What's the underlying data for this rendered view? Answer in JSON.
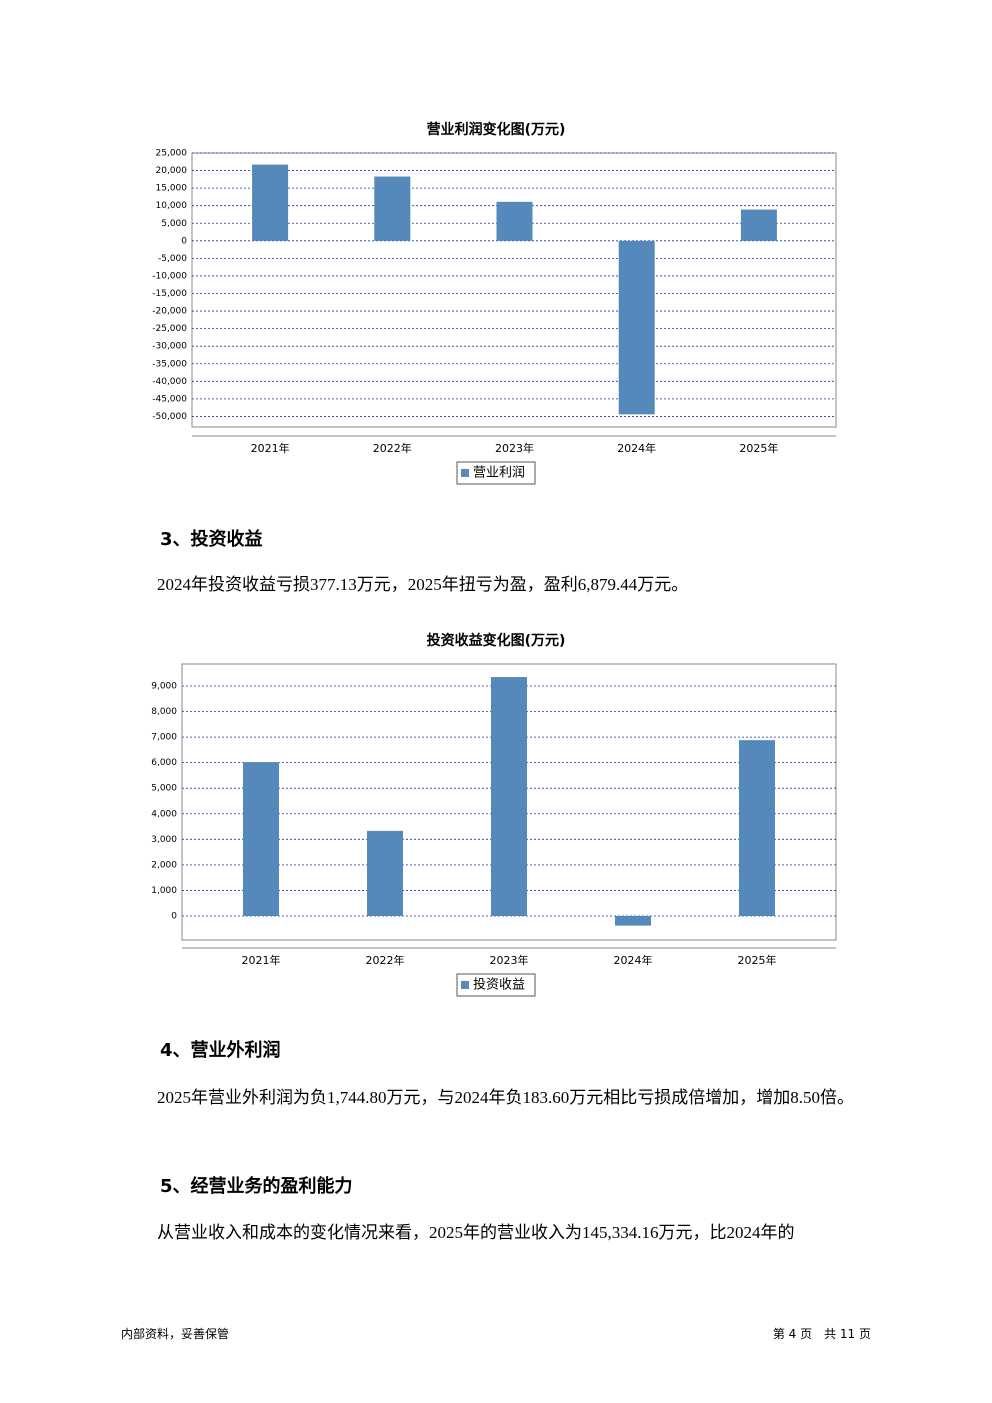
{
  "chart_data": [
    {
      "type": "bar",
      "title": "营业利润变化图(万元)",
      "categories": [
        "2021年",
        "2022年",
        "2023年",
        "2024年",
        "2025年"
      ],
      "series": [
        {
          "name": "营业利润",
          "color": "#5588bb",
          "values": [
            21700,
            18300,
            11100,
            -49400,
            8900
          ]
        }
      ],
      "ylim": [
        -53000,
        25000
      ],
      "yticks": [
        {
          "value": 25000,
          "label": "25,000"
        },
        {
          "value": 20000,
          "label": "20,000"
        },
        {
          "value": 15000,
          "label": "15,000"
        },
        {
          "value": 10000,
          "label": "10,000"
        },
        {
          "value": 5000,
          "label": "5,000"
        },
        0,
        {
          "value": -5000,
          "label": "-5,000"
        },
        {
          "value": -10000,
          "label": "-10,000"
        },
        {
          "value": -15000,
          "label": "-15,000"
        },
        {
          "value": -20000,
          "label": "-20,000"
        },
        {
          "value": -25000,
          "label": "-25,000"
        },
        {
          "value": -30000,
          "label": "-30,000"
        },
        {
          "value": -35000,
          "label": "-35,000"
        },
        {
          "value": -40000,
          "label": "-40,000"
        },
        {
          "value": -45000,
          "label": "-45,000"
        },
        {
          "value": -50000,
          "label": "-50,000"
        }
      ],
      "grid": true
    },
    {
      "type": "bar",
      "title": "投资收益变化图(万元)",
      "categories": [
        "2021年",
        "2022年",
        "2023年",
        "2024年",
        "2025年"
      ],
      "series": [
        {
          "name": "投资收益",
          "color": "#5588bb",
          "values": [
            6020,
            3330,
            9350,
            -377.13,
            6879.44
          ]
        }
      ],
      "ylim": [
        -940,
        9860
      ],
      "yticks": [
        {
          "value": 9000,
          "label": "9,000"
        },
        {
          "value": 8000,
          "label": "8,000"
        },
        {
          "value": 7000,
          "label": "7,000"
        },
        {
          "value": 6000,
          "label": "6,000"
        },
        {
          "value": 5000,
          "label": "5,000"
        },
        {
          "value": 4000,
          "label": "4,000"
        },
        {
          "value": 3000,
          "label": "3,000"
        },
        {
          "value": 2000,
          "label": "2,000"
        },
        {
          "value": 1000,
          "label": "1,000"
        },
        0
      ],
      "grid": true
    }
  ],
  "document": {
    "sections": [
      {
        "heading": "3、投资收益",
        "text": "2024年投资收益亏损377.13万元，2025年扭亏为盈，盈利6,879.44万元。"
      },
      {
        "heading": "4、营业外利润",
        "text": "2025年营业外利润为负1,744.80万元，与2024年负183.60万元相比亏损成倍增加，增加8.50倍。"
      },
      {
        "heading": "5、经营业务的盈利能力",
        "text": "从营业收入和成本的变化情况来看，2025年的营业收入为145,334.16万元，比2024年的"
      }
    ]
  },
  "footer": {
    "left": "内部资料，妥善保管",
    "right": "第 4 页　共 11 页"
  }
}
